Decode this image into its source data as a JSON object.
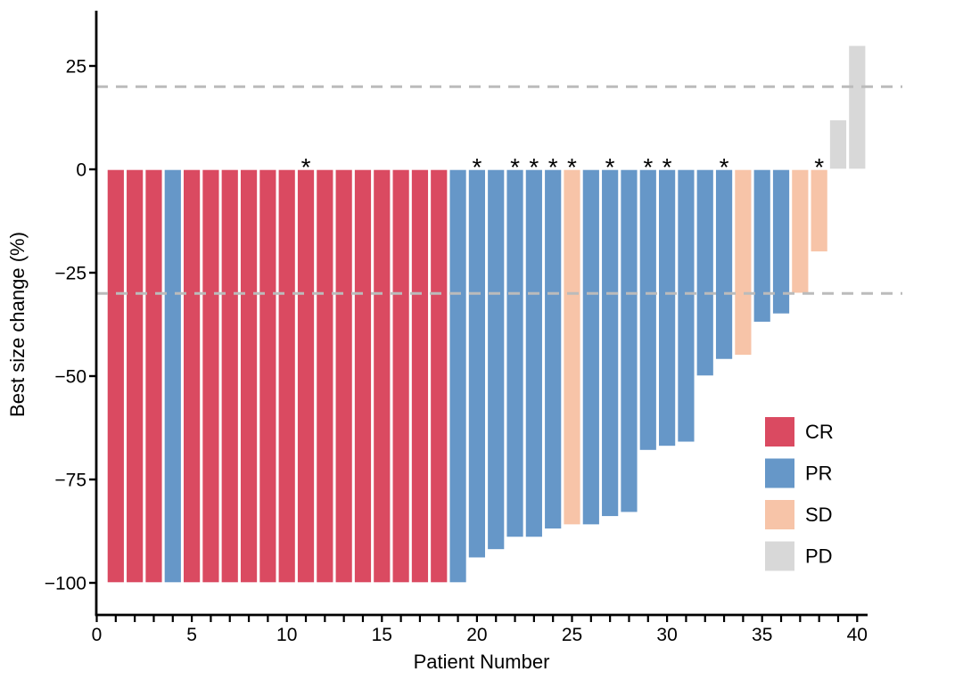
{
  "figure": {
    "xlabel": "Patient Number",
    "ylabel": "Best size change (%)"
  },
  "annotations": {
    "significance_marker": "*"
  },
  "legend": {
    "position": "right-lower",
    "items": [
      {
        "label": "CR",
        "color": "#DA4A61"
      },
      {
        "label": "PR",
        "color": "#6697C8"
      },
      {
        "label": "SD",
        "color": "#F7C4A8"
      },
      {
        "label": "PD",
        "color": "#D8D8D8"
      }
    ]
  },
  "colors": {
    "CR": "#DA4A61",
    "PR": "#6697C8",
    "SD": "#F7C4A8",
    "PD": "#D8D8D8",
    "bar_outline": "#FFFFFF",
    "reference_line": "#BBBBBB",
    "axis": "#000000"
  },
  "chart_data": {
    "type": "bar",
    "title": "",
    "xlabel": "Patient Number",
    "ylabel": "Best size change (%)",
    "xlim": [
      0,
      40.6
    ],
    "ylim": [
      -105,
      37
    ],
    "x_ticks_labeled": [
      0,
      5,
      10,
      15,
      20,
      25,
      30,
      35,
      40
    ],
    "x_minor_tick_every": 1,
    "y_ticks": [
      25,
      0,
      -25,
      -50,
      -75,
      -100
    ],
    "grid": false,
    "legend_position": "right-lower",
    "reference_lines": [
      {
        "y": 20,
        "style": "dashed"
      },
      {
        "y": -30,
        "style": "dashed"
      }
    ],
    "patients": [
      {
        "n": 1,
        "value": -100,
        "response": "CR",
        "star": false
      },
      {
        "n": 2,
        "value": -100,
        "response": "CR",
        "star": false
      },
      {
        "n": 3,
        "value": -100,
        "response": "CR",
        "star": false
      },
      {
        "n": 4,
        "value": -100,
        "response": "PR",
        "star": false
      },
      {
        "n": 5,
        "value": -100,
        "response": "CR",
        "star": false
      },
      {
        "n": 6,
        "value": -100,
        "response": "CR",
        "star": false
      },
      {
        "n": 7,
        "value": -100,
        "response": "CR",
        "star": false
      },
      {
        "n": 8,
        "value": -100,
        "response": "CR",
        "star": false
      },
      {
        "n": 9,
        "value": -100,
        "response": "CR",
        "star": false
      },
      {
        "n": 10,
        "value": -100,
        "response": "CR",
        "star": false
      },
      {
        "n": 11,
        "value": -100,
        "response": "CR",
        "star": true
      },
      {
        "n": 12,
        "value": -100,
        "response": "CR",
        "star": false
      },
      {
        "n": 13,
        "value": -100,
        "response": "CR",
        "star": false
      },
      {
        "n": 14,
        "value": -100,
        "response": "CR",
        "star": false
      },
      {
        "n": 15,
        "value": -100,
        "response": "CR",
        "star": false
      },
      {
        "n": 16,
        "value": -100,
        "response": "CR",
        "star": false
      },
      {
        "n": 17,
        "value": -100,
        "response": "CR",
        "star": false
      },
      {
        "n": 18,
        "value": -100,
        "response": "CR",
        "star": false
      },
      {
        "n": 19,
        "value": -100,
        "response": "PR",
        "star": false
      },
      {
        "n": 20,
        "value": -94,
        "response": "PR",
        "star": true
      },
      {
        "n": 21,
        "value": -92,
        "response": "PR",
        "star": false
      },
      {
        "n": 22,
        "value": -89,
        "response": "PR",
        "star": true
      },
      {
        "n": 23,
        "value": -89,
        "response": "PR",
        "star": true
      },
      {
        "n": 24,
        "value": -87,
        "response": "PR",
        "star": true
      },
      {
        "n": 25,
        "value": -86,
        "response": "SD",
        "star": true
      },
      {
        "n": 26,
        "value": -86,
        "response": "PR",
        "star": false
      },
      {
        "n": 27,
        "value": -84,
        "response": "PR",
        "star": true
      },
      {
        "n": 28,
        "value": -83,
        "response": "PR",
        "star": false
      },
      {
        "n": 29,
        "value": -68,
        "response": "PR",
        "star": true
      },
      {
        "n": 30,
        "value": -67,
        "response": "PR",
        "star": true
      },
      {
        "n": 31,
        "value": -66,
        "response": "PR",
        "star": false
      },
      {
        "n": 32,
        "value": -50,
        "response": "PR",
        "star": false
      },
      {
        "n": 33,
        "value": -46,
        "response": "PR",
        "star": true
      },
      {
        "n": 34,
        "value": -45,
        "response": "SD",
        "star": false
      },
      {
        "n": 35,
        "value": -37,
        "response": "PR",
        "star": false
      },
      {
        "n": 36,
        "value": -35,
        "response": "PR",
        "star": false
      },
      {
        "n": 37,
        "value": -30,
        "response": "SD",
        "star": false
      },
      {
        "n": 38,
        "value": -20,
        "response": "SD",
        "star": true
      },
      {
        "n": 39,
        "value": 12,
        "response": "PD",
        "star": false
      },
      {
        "n": 40,
        "value": 30,
        "response": "PD",
        "star": false
      }
    ]
  }
}
